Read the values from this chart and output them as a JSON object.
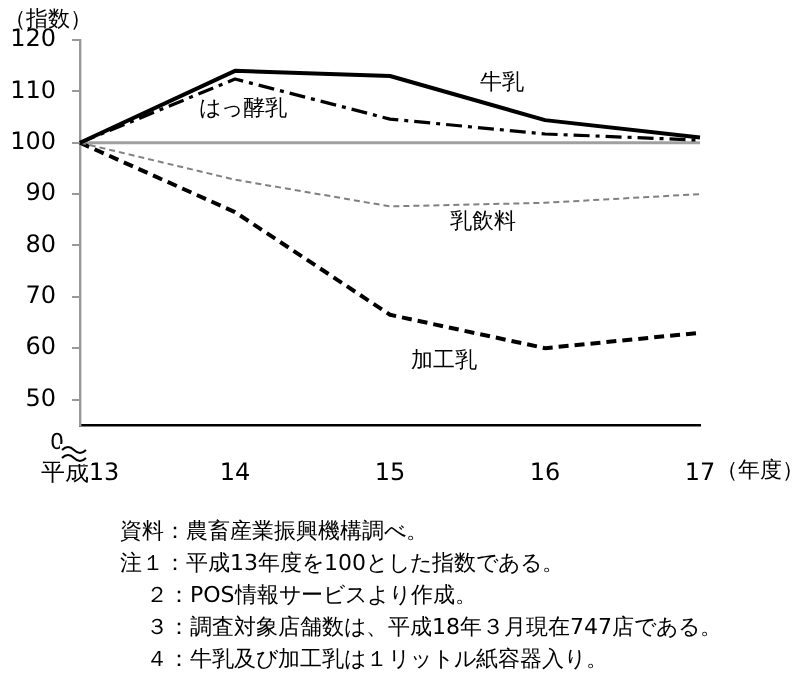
{
  "chart_data": {
    "type": "line",
    "xlabel": "（年度）",
    "ylabel": "（指数）",
    "categories": [
      "平成13",
      "14",
      "15",
      "16",
      "17"
    ],
    "series": [
      {
        "name": "牛乳",
        "color": "#000000",
        "line_style": "solid",
        "values": [
          100,
          114,
          113,
          104.4,
          101
        ]
      },
      {
        "name": "はっ酵乳",
        "color": "#000000",
        "line_style": "dashed",
        "values": [
          100,
          112.4,
          104.6,
          101.7,
          100.5
        ]
      },
      {
        "name": "乳飲料",
        "color": "#808080",
        "line_style": "dotted",
        "values": [
          100,
          92.8,
          87.6,
          88.3,
          90
        ]
      },
      {
        "name": "加工乳",
        "color": "#000000",
        "line_style": "dashed",
        "values": [
          100,
          86.5,
          66.5,
          60,
          63
        ]
      }
    ],
    "ylim": [
      45,
      120
    ],
    "yticks": [
      50,
      60,
      70,
      80,
      90,
      100,
      110,
      120
    ],
    "ref_lines": [
      {
        "axis": "y",
        "value": 100,
        "color": "#a0a0a0"
      }
    ],
    "grid": false,
    "legend": false,
    "marker": "none",
    "annotations": [
      "0",
      "資料：農畜産業振興機構調べ。",
      "注１：平成13年度を100とした指数である。",
      "２：POS情報サービスより作成。",
      "３：調査対象店舗数は、平成18年３月現在747店である。",
      "４：牛乳及び加工乳は１リットル紙容器入り。"
    ]
  }
}
